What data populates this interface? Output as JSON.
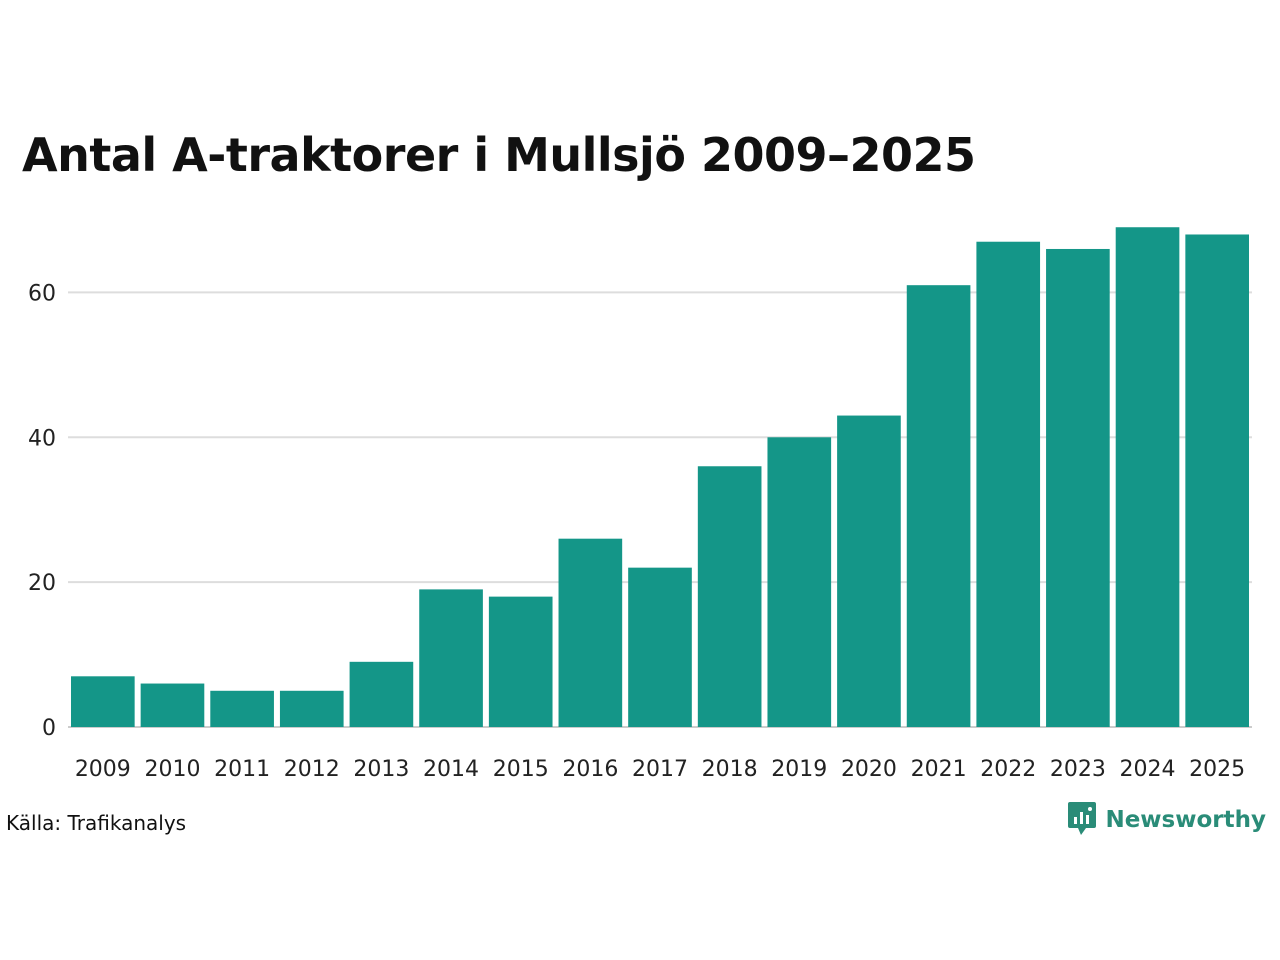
{
  "chart_data": {
    "type": "bar",
    "title": "Antal A-traktorer i Mullsjö 2009–2025",
    "xlabel": "",
    "ylabel": "",
    "categories": [
      "2009",
      "2010",
      "2011",
      "2012",
      "2013",
      "2014",
      "2015",
      "2016",
      "2017",
      "2018",
      "2019",
      "2020",
      "2021",
      "2022",
      "2023",
      "2024",
      "2025"
    ],
    "values": [
      7,
      6,
      5,
      5,
      9,
      19,
      18,
      26,
      22,
      36,
      40,
      43,
      61,
      67,
      66,
      69,
      68
    ],
    "ylim": [
      0,
      70
    ],
    "yticks": [
      "0",
      "20",
      "40",
      "60"
    ],
    "grid": true,
    "bar_color": "#149688"
  },
  "footer": {
    "source": "Källa: Trafikanalys",
    "brand": "Newsworthy",
    "brand_icon": "bar-chart-speech-bubble-icon",
    "brand_color": "#2a8c78"
  }
}
